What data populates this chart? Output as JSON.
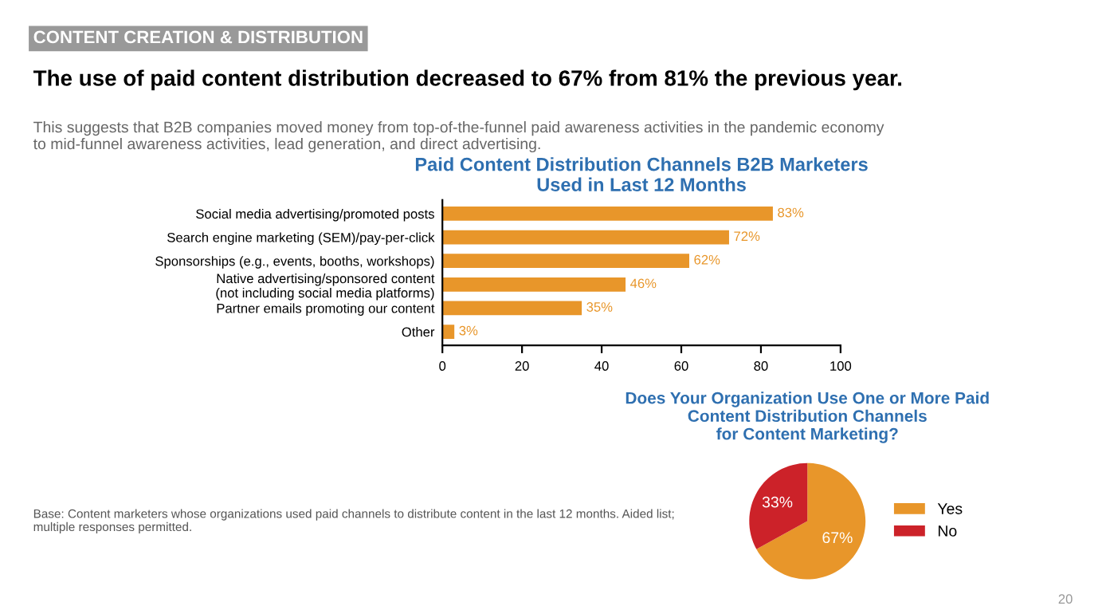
{
  "chart_data": [
    {
      "type": "bar",
      "orientation": "horizontal",
      "title": "Paid Content Distribution Channels B2B Marketers\nUsed in Last 12 Months",
      "categories": [
        "Social media advertising/promoted posts",
        "Search engine marketing (SEM)/pay-per-click",
        "Sponsorships (e.g., events, booths, workshops)",
        "Native advertising/sponsored content\n(not including social media platforms)",
        "Partner emails promoting our content",
        "Other"
      ],
      "values": [
        83,
        72,
        62,
        46,
        35,
        3
      ],
      "value_labels": [
        "83%",
        "72%",
        "62%",
        "46%",
        "35%",
        "3%"
      ],
      "color": "#e8962a",
      "xlim": [
        0,
        100
      ],
      "xticks": [
        0,
        20,
        40,
        60,
        80,
        100
      ],
      "grid": false,
      "annotations": [
        "CONTENT CREATION & DISTRIBUTION",
        "The use of paid content distribution decreased to 67% from 81% the previous year.",
        "This suggests that B2B companies moved money from top-of-the-funnel paid awareness activities in the pandemic economy\nto mid-funnel awareness activities, lead generation, and direct advertising.",
        "Base: Content marketers whose organizations used paid channels to distribute content in the last 12 months. Aided list;\nmultiple responses permitted.",
        "20"
      ]
    },
    {
      "type": "pie",
      "title": "Does Your Organization Use One or More Paid\nContent Distribution Channels\nfor Content Marketing?",
      "categories": [
        "Yes",
        "No"
      ],
      "values": [
        67,
        33
      ],
      "value_labels": [
        "67%",
        "33%"
      ],
      "colors": [
        "#e8962a",
        "#cc2229"
      ],
      "legend": "right"
    }
  ]
}
